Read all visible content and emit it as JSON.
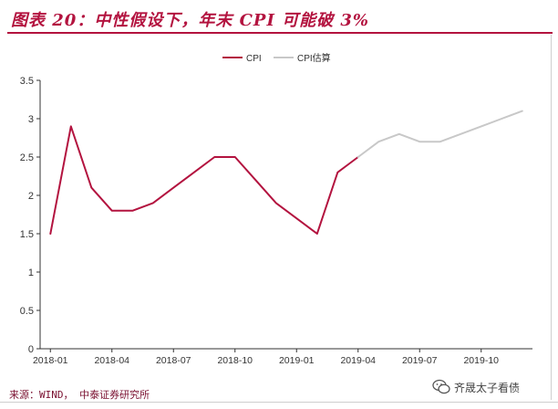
{
  "header": {
    "title": "图表 20：中性假设下，年末 CPI 可能破 3%"
  },
  "chart_data": {
    "type": "line",
    "title": "",
    "xlabel": "",
    "ylabel": "",
    "ylim": [
      0,
      3.5
    ],
    "yticks": [
      "0",
      "0.5",
      "1",
      "1.5",
      "2",
      "2.5",
      "3",
      "3.5"
    ],
    "xticks": [
      {
        "label": "2018-01",
        "index": 0
      },
      {
        "label": "2018-04",
        "index": 3
      },
      {
        "label": "2018-07",
        "index": 6
      },
      {
        "label": "2018-10",
        "index": 9
      },
      {
        "label": "2019-01",
        "index": 12
      },
      {
        "label": "2019-04",
        "index": 15
      },
      {
        "label": "2019-07",
        "index": 18
      },
      {
        "label": "2019-10",
        "index": 21
      }
    ],
    "x_count": 24,
    "legend_position": "top-center",
    "series": [
      {
        "name": "CPI",
        "color": "#b3133f",
        "start_index": 0,
        "values": [
          1.5,
          2.9,
          2.1,
          1.8,
          1.8,
          1.9,
          2.1,
          2.3,
          2.5,
          2.5,
          2.2,
          1.9,
          1.7,
          1.5,
          2.3,
          2.5
        ]
      },
      {
        "name": "CPI估算",
        "color": "#c8c8c8",
        "start_index": 15,
        "values": [
          2.5,
          2.7,
          2.8,
          2.7,
          2.7,
          2.8,
          2.9,
          3.0,
          3.1
        ]
      }
    ]
  },
  "footer": {
    "source": "来源：WIND， 中泰证券研究所",
    "watermark": "齐晟太子看债"
  }
}
